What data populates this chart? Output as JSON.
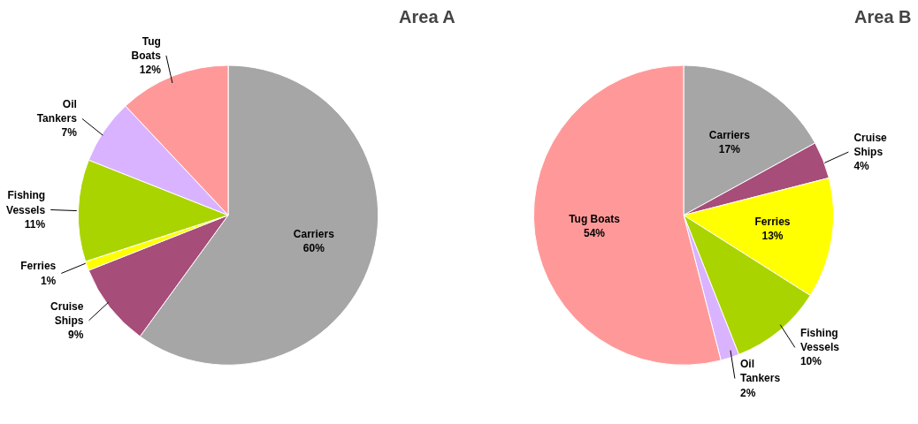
{
  "chart_data": [
    {
      "type": "pie",
      "title": "Area A",
      "categories": [
        "Carriers",
        "Cruise Ships",
        "Ferries",
        "Fishing Vessels",
        "Oil Tankers",
        "Tug Boats"
      ],
      "values": [
        60,
        9,
        1,
        11,
        7,
        12
      ],
      "value_labels": [
        "60%",
        "9%",
        "1%",
        "11%",
        "7%",
        "12%"
      ],
      "colors": [
        "#a6a6a6",
        "#a64d79",
        "#ffff00",
        "#aad400",
        "#d9b3ff",
        "#ff9999"
      ]
    },
    {
      "type": "pie",
      "title": "Area B",
      "categories": [
        "Carriers",
        "Cruise Ships",
        "Ferries",
        "Fishing Vessels",
        "Oil Tankers",
        "Tug Boats"
      ],
      "values": [
        17,
        4,
        13,
        10,
        2,
        54
      ],
      "value_labels": [
        "17%",
        "4%",
        "13%",
        "10%",
        "2%",
        "54%"
      ],
      "colors": [
        "#a6a6a6",
        "#a64d79",
        "#ffff00",
        "#aad400",
        "#d9b3ff",
        "#ff9999"
      ]
    }
  ]
}
